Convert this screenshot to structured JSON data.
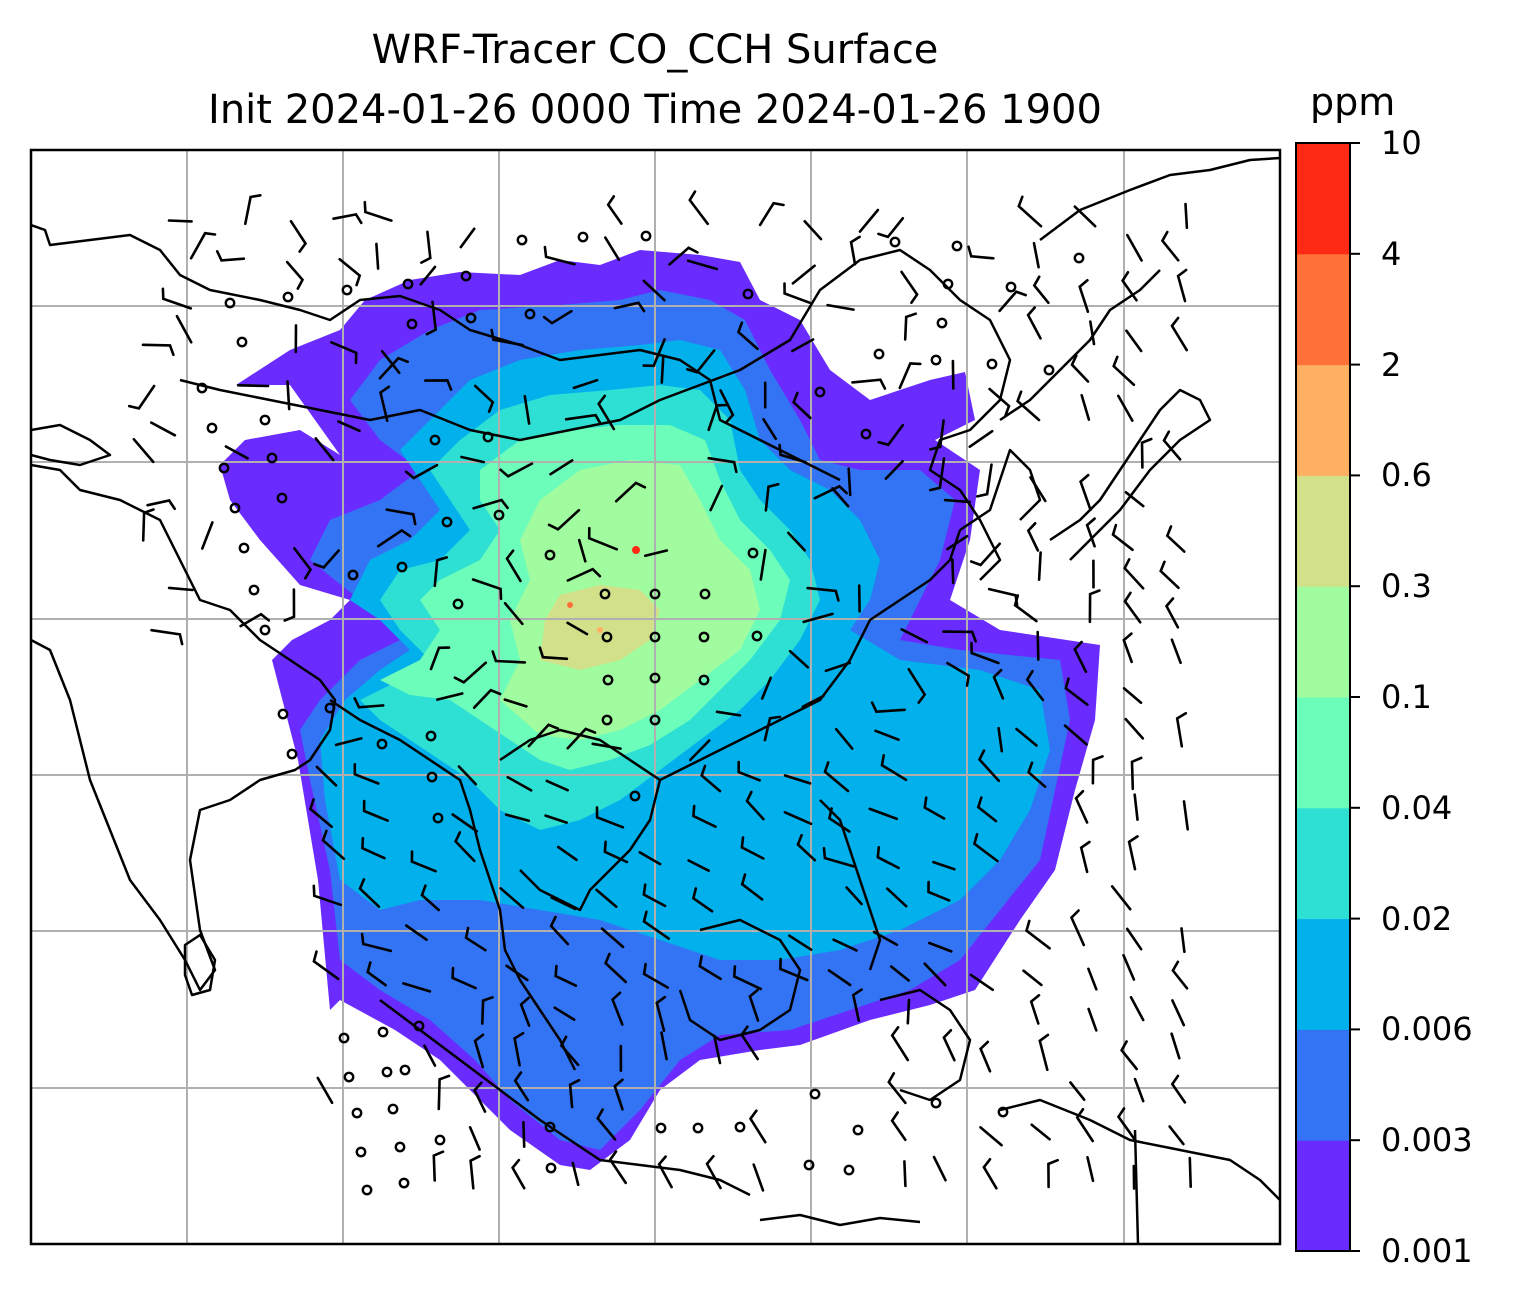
{
  "title": {
    "line1": "WRF-Tracer CO_CCH Surface",
    "line2": "Init 2024-01-26 0000 Time 2024-01-26 1900"
  },
  "colorbar": {
    "unit": "ppm",
    "levels": [
      "0.001",
      "0.003",
      "0.006",
      "0.02",
      "0.04",
      "0.1",
      "0.3",
      "0.6",
      "2",
      "4",
      "10"
    ],
    "colors": [
      "#6a2bff",
      "#3374f5",
      "#02b1ec",
      "#2ee0d4",
      "#6dfdba",
      "#a1fc9f",
      "#d2e08a",
      "#ffb062",
      "#ff7139",
      "#ff2a16"
    ]
  },
  "map": {
    "features": [
      "coastlines",
      "country-borders",
      "gridlines",
      "wind-barbs",
      "calm-circles",
      "co-tracer-concentration"
    ]
  }
}
